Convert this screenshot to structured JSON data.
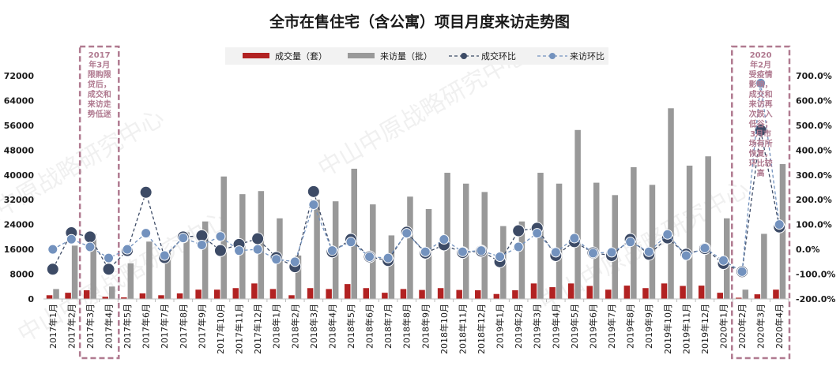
{
  "chart_data": {
    "type": "bar",
    "title": "全市在售住宅（含公寓）项目月度来访走势图",
    "categories": [
      "2017年1月",
      "2017年2月",
      "2017年3月",
      "2017年4月",
      "2017年5月",
      "2017年6月",
      "2017年7月",
      "2017年8月",
      "2017年9月",
      "2017年10月",
      "2017年11月",
      "2017年12月",
      "2018年1月",
      "2018年2月",
      "2018年3月",
      "2018年4月",
      "2018年5月",
      "2018年6月",
      "2018年7月",
      "2018年8月",
      "2018年9月",
      "2018年10月",
      "2018年11月",
      "2018年12月",
      "2019年1月",
      "2019年2月",
      "2019年3月",
      "2019年4月",
      "2019年5月",
      "2019年6月",
      "2019年7月",
      "2019年8月",
      "2019年9月",
      "2019年10月",
      "2019年11月",
      "2019年12月",
      "2020年1月",
      "2020年2月",
      "2020年3月",
      "2020年4月"
    ],
    "left_axis": {
      "ticks": [
        "72000",
        "64000",
        "56000",
        "48000",
        "40000",
        "32000",
        "24000",
        "16000",
        "8000",
        "0"
      ],
      "ylim": [
        0,
        72000
      ]
    },
    "right_axis": {
      "ticks": [
        "700.0%",
        "600.0%",
        "500.0%",
        "400.0%",
        "300.0%",
        "200.0%",
        "100.0%",
        "0.0%",
        "-100.0%",
        "-200.0%"
      ],
      "ylim": [
        -200,
        700
      ]
    },
    "series": [
      {
        "name": "成交量（套）",
        "type": "bar",
        "axis": "left",
        "color": "#b22222",
        "values": [
          1200,
          2000,
          2800,
          700,
          500,
          1800,
          1200,
          1800,
          3000,
          3000,
          3500,
          5000,
          3200,
          1200,
          3500,
          3200,
          4800,
          3500,
          2000,
          3200,
          2900,
          3500,
          2900,
          2800,
          1600,
          2800,
          5000,
          3800,
          5000,
          4200,
          3000,
          4300,
          3500,
          5000,
          4200,
          4300,
          2000,
          400,
          1500,
          3000
        ]
      },
      {
        "name": "来访量（批）",
        "type": "bar",
        "axis": "left",
        "color": "#999999",
        "values": [
          3200,
          17200,
          21000,
          4000,
          11500,
          18500,
          15000,
          21500,
          25000,
          39500,
          33800,
          34800,
          26000,
          14000,
          32000,
          31500,
          42000,
          30500,
          20500,
          33000,
          29000,
          40700,
          37200,
          34500,
          23500,
          25000,
          40700,
          37200,
          54500,
          37500,
          33500,
          42500,
          36800,
          61500,
          43000,
          46000,
          26000,
          3000,
          21000,
          43500
        ]
      },
      {
        "name": "成交环比",
        "type": "line",
        "axis": "right",
        "color": "#3d4b66",
        "values": [
          -80,
          67,
          50,
          -80,
          -5,
          230,
          -33,
          50,
          55,
          -5,
          20,
          43,
          -33,
          -70,
          233,
          -10,
          40,
          -30,
          -45,
          69,
          -15,
          18,
          -13,
          -7,
          -50,
          75,
          85,
          -25,
          31,
          -14,
          -25,
          40,
          -20,
          46,
          -20,
          3,
          -57,
          -90,
          480,
          90
        ]
      },
      {
        "name": "来访环比",
        "type": "line",
        "axis": "right",
        "color": "#7392be",
        "values": [
          0,
          41,
          10,
          -35,
          0,
          65,
          -25,
          46,
          18,
          52,
          -5,
          0,
          -40,
          -50,
          180,
          -5,
          30,
          -30,
          -35,
          65,
          -10,
          40,
          -10,
          -5,
          -30,
          10,
          65,
          -12,
          45,
          -15,
          -12,
          30,
          -10,
          60,
          -25,
          5,
          -45,
          -90,
          670,
          100
        ]
      }
    ],
    "annotations": [
      {
        "text": [
          "2017",
          "年3月",
          "限购限",
          "贷后，",
          "成交和",
          "来访走",
          "势低迷"
        ],
        "span": [
          "2017年3月",
          "2017年4月"
        ]
      },
      {
        "text": [
          "2020",
          "年2月",
          "受疫情",
          "影响，",
          "成交和",
          "来访再",
          "次跌入",
          "低谷；",
          "3月市",
          "场有所",
          "恢复，",
          "环比较",
          "高"
        ],
        "span": [
          "2020年2月",
          "2020年4月"
        ]
      }
    ],
    "watermark": "中山中原战略研究中心",
    "legend_position": "top"
  }
}
